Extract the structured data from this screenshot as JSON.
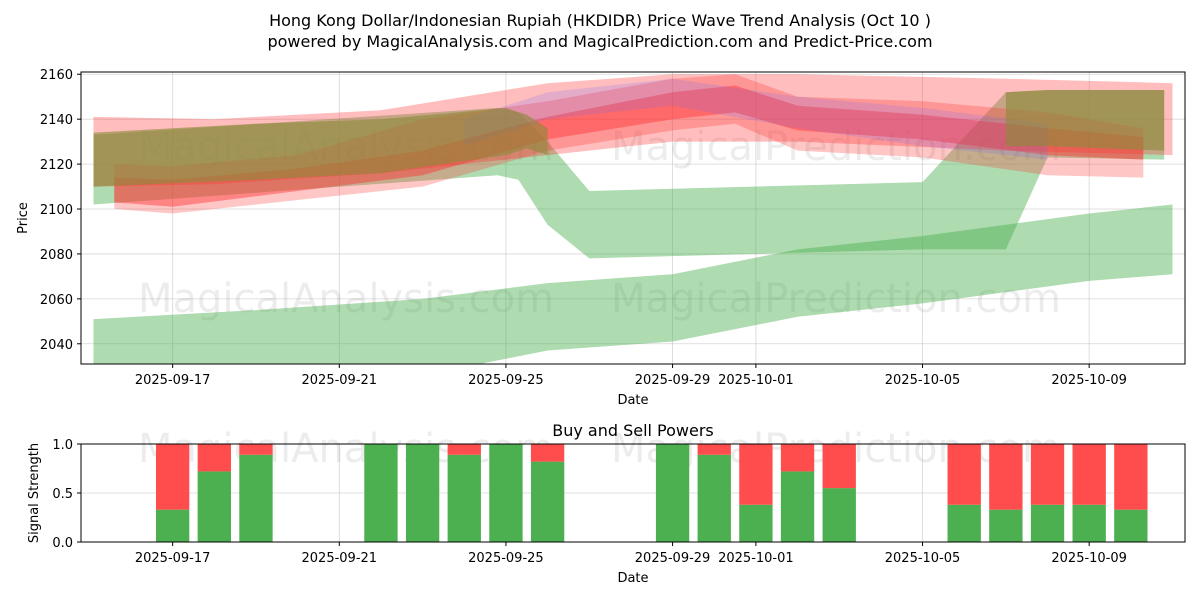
{
  "chart_data": [
    {
      "type": "area",
      "title": "Hong Kong Dollar/Indonesian Rupiah (HKDIDR) Price Wave Trend Analysis (Oct 10 )",
      "subtitle": "powered by MagicalAnalysis.com and MagicalPrediction.com and Predict-Price.com",
      "xlabel": "Date",
      "ylabel": "Price",
      "ylim": [
        2031,
        2161
      ],
      "x_day_range": [
        -2.2,
        24.3
      ],
      "x_origin_date": "2025-09-17",
      "yticks": [
        2040,
        2060,
        2080,
        2100,
        2120,
        2140,
        2160
      ],
      "xticks": [
        {
          "day": 0,
          "label": "2025-09-17"
        },
        {
          "day": 4,
          "label": "2025-09-21"
        },
        {
          "day": 8,
          "label": "2025-09-25"
        },
        {
          "day": 12,
          "label": "2025-09-29"
        },
        {
          "day": 14,
          "label": "2025-10-01"
        },
        {
          "day": 18,
          "label": "2025-10-05"
        },
        {
          "day": 22,
          "label": "2025-10-09"
        }
      ],
      "watermarks": [
        "MagicalAnalysis.com",
        "MagicalPrediction.com",
        "MagicalAnalysis.com",
        "MagicalPrediction.com"
      ],
      "bands": [
        {
          "name": "green-wave-upper",
          "color": "#4caf50",
          "opacity": 0.45,
          "x": [
            -1.9,
            7.8,
            8.3,
            9.0,
            10.0,
            18.0,
            20.0,
            21.0,
            23.8
          ],
          "upper": [
            2133,
            2145,
            2143,
            2130,
            2108,
            2112,
            2152,
            2153,
            2153
          ],
          "lower": [
            2102,
            2115,
            2113,
            2093,
            2078,
            2082,
            2082,
            2123,
            2122
          ]
        },
        {
          "name": "green-wave-lower",
          "color": "#4caf50",
          "opacity": 0.45,
          "x": [
            -1.9,
            2.0,
            6.0,
            9.0,
            12.0,
            15.0,
            18.0,
            22.0,
            24.0
          ],
          "upper": [
            2051,
            2055,
            2060,
            2067,
            2071,
            2082,
            2088,
            2098,
            2102
          ],
          "lower": [
            2017,
            2020,
            2026,
            2037,
            2041,
            2052,
            2058,
            2068,
            2071
          ]
        },
        {
          "name": "red-wave-wide",
          "color": "#ff3333",
          "opacity": 0.32,
          "x": [
            -1.9,
            1.0,
            5.0,
            9.0,
            12.0,
            15.0,
            20.0,
            24.0
          ],
          "upper": [
            2141,
            2140,
            2144,
            2156,
            2160,
            2160,
            2158,
            2156
          ],
          "lower": [
            2110,
            2111,
            2116,
            2124,
            2130,
            2130,
            2126,
            2124
          ]
        },
        {
          "name": "red-wave-mid",
          "color": "#ff3333",
          "opacity": 0.28,
          "x": [
            -1.4,
            0.0,
            3.0,
            6.0,
            9.0,
            12.0,
            13.5,
            15.0,
            18.0,
            21.0,
            23.3
          ],
          "upper": [
            2120,
            2119,
            2124,
            2140,
            2148,
            2158,
            2160,
            2150,
            2148,
            2143,
            2136
          ],
          "lower": [
            2100,
            2098,
            2104,
            2110,
            2126,
            2135,
            2138,
            2126,
            2123,
            2115,
            2114
          ]
        },
        {
          "name": "red-wave-core",
          "color": "#ff3333",
          "opacity": 0.45,
          "x": [
            -1.4,
            0.0,
            3.0,
            6.0,
            9.0,
            12.0,
            13.5,
            15.0,
            18.0,
            21.0,
            23.3
          ],
          "upper": [
            2114,
            2113,
            2118,
            2126,
            2141,
            2152,
            2155,
            2146,
            2142,
            2136,
            2132
          ],
          "lower": [
            2103,
            2101,
            2108,
            2115,
            2131,
            2140,
            2143,
            2135,
            2131,
            2124,
            2122
          ]
        },
        {
          "name": "blue-wave",
          "color": "#6666ff",
          "opacity": 0.18,
          "x": [
            7.0,
            9.0,
            12.0,
            15.0,
            18.0,
            21.0
          ],
          "upper": [
            2140,
            2152,
            2158,
            2150,
            2145,
            2138
          ],
          "lower": [
            2128,
            2140,
            2146,
            2136,
            2128,
            2122
          ]
        },
        {
          "name": "olive-wave",
          "color": "#8a8a3a",
          "opacity": 0.62,
          "x": [
            -1.9,
            2.0,
            5.0,
            8.0,
            8.5,
            9.0
          ],
          "upper": [
            2134,
            2138,
            2140,
            2145,
            2142,
            2136
          ],
          "lower": [
            2110,
            2113,
            2116,
            2124,
            2127,
            2124
          ]
        },
        {
          "name": "olive-wave-right",
          "color": "#8a8a3a",
          "opacity": 0.62,
          "x": [
            20.0,
            21.0,
            23.8
          ],
          "upper": [
            2152,
            2153,
            2153
          ],
          "lower": [
            2128,
            2128,
            2126
          ]
        }
      ]
    },
    {
      "type": "bar",
      "title": "Buy and Sell Powers",
      "xlabel": "Date",
      "ylabel": "Signal Strength",
      "ylim": [
        0,
        1
      ],
      "yticks": [
        {
          "value": 0,
          "label": "0.0"
        },
        {
          "value": 0.5,
          "label": "0.5"
        },
        {
          "value": 1,
          "label": "1.0"
        }
      ],
      "xticks": [
        {
          "day": 0,
          "label": "2025-09-17"
        },
        {
          "day": 4,
          "label": "2025-09-21"
        },
        {
          "day": 8,
          "label": "2025-09-25"
        },
        {
          "day": 12,
          "label": "2025-09-29"
        },
        {
          "day": 14,
          "label": "2025-10-01"
        },
        {
          "day": 18,
          "label": "2025-10-05"
        },
        {
          "day": 22,
          "label": "2025-10-09"
        }
      ],
      "series": [
        {
          "name": "Buy",
          "color": "#4caf50"
        },
        {
          "name": "Sell",
          "color": "#ff4c4c"
        }
      ],
      "days": [
        0,
        1,
        2,
        5,
        6,
        7,
        8,
        9,
        12,
        13,
        14,
        15,
        16,
        19,
        20,
        21,
        22,
        23
      ],
      "buy": [
        0.33,
        0.72,
        0.89,
        1.0,
        1.0,
        0.89,
        1.0,
        0.82,
        1.0,
        0.89,
        0.38,
        0.72,
        0.55,
        0.38,
        0.33,
        0.38,
        0.38,
        0.33
      ],
      "sell": [
        0.67,
        0.28,
        0.11,
        0.0,
        0.0,
        0.11,
        0.0,
        0.18,
        0.0,
        0.11,
        0.62,
        0.28,
        0.45,
        0.62,
        0.67,
        0.62,
        0.62,
        0.67
      ]
    }
  ]
}
